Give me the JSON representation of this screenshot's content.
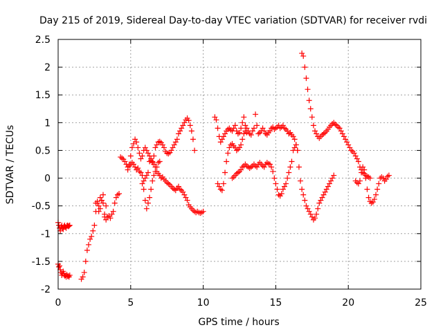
{
  "chart_data": {
    "type": "scatter",
    "title": "Day 215 of 2019, Sidereal Day-to-day VTEC variation (SDTVAR) for receiver rvdi",
    "xlabel": "GPS time / hours",
    "ylabel": "SDTVAR / TECUs",
    "xlim": [
      0,
      25
    ],
    "ylim": [
      -2,
      2.5
    ],
    "xticks": [
      "0",
      "5",
      "10",
      "15",
      "20",
      "25"
    ],
    "yticks": [
      "-2",
      "-1.5",
      "-1",
      "-0.5",
      "0",
      "0.5",
      "1",
      "1.5",
      "2",
      "2.5"
    ],
    "grid": true,
    "marker": "plus",
    "color": "#ff0000",
    "series": [
      {
        "x": [
          0.0,
          0.05,
          0.1,
          0.15,
          0.2,
          0.25,
          0.3,
          0.35,
          0.4,
          0.45,
          0.5,
          0.55,
          0.6,
          0.65,
          0.7,
          0.75,
          0.8
        ],
        "y": [
          -0.8,
          -0.85,
          -0.9,
          -0.95,
          -0.88,
          -0.85,
          -0.9,
          -0.92,
          -0.87,
          -0.85,
          -0.88,
          -0.9,
          -0.86,
          -0.85,
          -0.87,
          -0.86,
          -0.85
        ]
      },
      {
        "x": [
          0.0,
          0.05,
          0.1,
          0.15,
          0.2,
          0.25,
          0.3,
          0.35,
          0.4,
          0.45,
          0.5,
          0.55,
          0.6,
          0.65,
          0.7,
          0.75,
          0.8
        ],
        "y": [
          -1.55,
          -1.6,
          -1.58,
          -1.65,
          -1.7,
          -1.75,
          -1.72,
          -1.68,
          -1.72,
          -1.76,
          -1.75,
          -1.78,
          -1.74,
          -1.77,
          -1.76,
          -1.78,
          -1.75
        ]
      },
      {
        "x": [
          1.6,
          1.7,
          1.8,
          1.9,
          2.0,
          2.1,
          2.2,
          2.3,
          2.4,
          2.5,
          2.6,
          2.7,
          2.8,
          2.9,
          3.0,
          3.1,
          3.2,
          3.3,
          3.4,
          3.5,
          3.6,
          3.7,
          3.8,
          3.9,
          4.0,
          4.1,
          4.2
        ],
        "y": [
          -1.82,
          -1.78,
          -1.7,
          -1.5,
          -1.3,
          -1.2,
          -1.1,
          -1.05,
          -0.95,
          -0.85,
          -0.6,
          -0.45,
          -0.5,
          -0.55,
          -0.4,
          -0.3,
          -0.65,
          -0.5,
          -0.7,
          -0.68,
          -0.72,
          -0.65,
          -0.6,
          -0.45,
          -0.35,
          -0.3,
          -0.28
        ]
      },
      {
        "x": [
          2.6,
          2.7,
          2.8,
          2.9,
          3.0,
          3.1,
          3.2,
          3.3
        ],
        "y": [
          -0.45,
          -0.42,
          -0.6,
          -0.35,
          -0.4,
          -0.45,
          -0.7,
          -0.75
        ]
      },
      {
        "x": [
          4.3,
          4.4,
          4.5,
          4.6,
          4.7,
          4.8,
          4.9,
          5.0,
          5.1,
          5.2,
          5.3,
          5.4,
          5.5,
          5.6,
          5.7,
          5.8,
          5.9,
          6.0,
          6.1,
          6.2,
          6.3,
          6.4,
          6.5,
          6.6,
          6.7,
          6.8,
          6.9,
          7.0,
          7.1,
          7.2,
          7.3,
          7.4,
          7.5,
          7.6,
          7.7,
          7.8,
          7.9,
          8.0,
          8.1,
          8.2,
          8.3,
          8.4,
          8.5,
          8.6,
          8.7,
          8.8,
          8.9,
          9.0,
          9.1,
          9.2,
          9.3,
          9.4,
          9.5,
          9.6,
          9.7,
          9.8,
          9.9,
          10.0
        ],
        "y": [
          0.38,
          0.36,
          0.34,
          0.3,
          0.25,
          0.2,
          0.22,
          0.25,
          0.28,
          0.25,
          0.2,
          0.15,
          0.18,
          0.12,
          0.1,
          0.05,
          -0.05,
          0.0,
          0.05,
          0.1,
          0.3,
          0.32,
          0.28,
          0.25,
          0.2,
          0.12,
          0.08,
          0.05,
          0.0,
          0.02,
          -0.02,
          -0.05,
          -0.08,
          -0.1,
          -0.12,
          -0.15,
          -0.18,
          -0.2,
          -0.22,
          -0.18,
          -0.15,
          -0.2,
          -0.22,
          -0.25,
          -0.3,
          -0.35,
          -0.4,
          -0.48,
          -0.52,
          -0.55,
          -0.58,
          -0.6,
          -0.62,
          -0.6,
          -0.62,
          -0.63,
          -0.62,
          -0.6
        ]
      },
      {
        "x": [
          4.8,
          4.9,
          5.0,
          5.1,
          5.2,
          5.3,
          5.4,
          5.5,
          5.6,
          5.7,
          5.8,
          5.9,
          6.0,
          6.1,
          6.2,
          6.3,
          6.4,
          6.5,
          6.6,
          6.7,
          6.8,
          6.9,
          7.0,
          7.1,
          7.2,
          7.3,
          7.4,
          7.5,
          7.6,
          7.7,
          7.8,
          7.9,
          8.0,
          8.1,
          8.2,
          8.3,
          8.4,
          8.5,
          8.6,
          8.7,
          8.8,
          8.9,
          9.0,
          9.1,
          9.2,
          9.3,
          9.4
        ],
        "y": [
          0.15,
          0.25,
          0.4,
          0.55,
          0.62,
          0.7,
          0.65,
          0.55,
          0.45,
          0.35,
          0.4,
          0.5,
          0.55,
          0.5,
          0.45,
          0.4,
          0.35,
          0.3,
          0.4,
          0.55,
          0.6,
          0.65,
          0.66,
          0.64,
          0.6,
          0.55,
          0.48,
          0.45,
          0.44,
          0.46,
          0.5,
          0.55,
          0.6,
          0.65,
          0.7,
          0.8,
          0.85,
          0.9,
          0.95,
          1.0,
          1.05,
          1.08,
          1.04,
          0.95,
          0.85,
          0.7,
          0.5
        ]
      },
      {
        "x": [
          5.8,
          5.9,
          6.0,
          6.1,
          6.2,
          6.3,
          6.4,
          6.5,
          6.6,
          6.7,
          6.8,
          6.9,
          7.0
        ],
        "y": [
          -0.1,
          -0.2,
          -0.4,
          -0.55,
          -0.45,
          -0.35,
          -0.2,
          -0.05,
          0.05,
          0.12,
          0.2,
          0.28,
          0.3
        ]
      },
      {
        "x": [
          10.8,
          10.9,
          11.0,
          11.1,
          11.2,
          11.3,
          11.4,
          11.5,
          11.6,
          11.7,
          11.8,
          11.9,
          12.0,
          12.1,
          12.2,
          12.3,
          12.4,
          12.5,
          12.6,
          12.7,
          12.8,
          12.9,
          13.0,
          13.1,
          13.2,
          13.3,
          13.4,
          13.5,
          13.6,
          13.7,
          13.8,
          13.9,
          14.0,
          14.1,
          14.2,
          14.3,
          14.4,
          14.5,
          14.6,
          14.7,
          14.8,
          14.9,
          15.0,
          15.1,
          15.2,
          15.3,
          15.4,
          15.5,
          15.6,
          15.7,
          15.8,
          15.9,
          16.0,
          16.1,
          16.2,
          16.3,
          16.4,
          16.5
        ],
        "y": [
          1.1,
          1.05,
          0.9,
          0.75,
          0.65,
          0.7,
          0.75,
          0.8,
          0.85,
          0.88,
          0.9,
          0.87,
          0.85,
          0.9,
          0.95,
          0.85,
          0.8,
          0.82,
          0.9,
          1.0,
          1.1,
          0.95,
          0.9,
          0.85,
          0.8,
          0.78,
          0.85,
          0.9,
          1.15,
          0.95,
          0.8,
          0.82,
          0.85,
          0.9,
          0.85,
          0.8,
          0.78,
          0.82,
          0.85,
          0.9,
          0.92,
          0.88,
          0.9,
          0.92,
          0.95,
          0.9,
          0.92,
          0.95,
          0.9,
          0.88,
          0.85,
          0.8,
          0.82,
          0.78,
          0.75,
          0.7,
          0.6,
          0.5
        ]
      },
      {
        "x": [
          11.0,
          11.1,
          11.2,
          11.3,
          11.4,
          11.5,
          11.6,
          11.7,
          11.8,
          11.9,
          12.0,
          12.1,
          12.2,
          12.3,
          12.4,
          12.5,
          12.6,
          12.7,
          12.8,
          12.9,
          13.0
        ],
        "y": [
          -0.1,
          -0.15,
          -0.2,
          -0.22,
          -0.1,
          0.1,
          0.3,
          0.45,
          0.55,
          0.6,
          0.62,
          0.58,
          0.55,
          0.5,
          0.52,
          0.55,
          0.6,
          0.7,
          0.8,
          0.85,
          0.82
        ]
      },
      {
        "x": [
          12.0,
          12.1,
          12.2,
          12.3,
          12.4,
          12.5,
          12.6,
          12.7,
          12.8,
          12.9,
          13.0,
          13.1,
          13.2,
          13.3,
          13.4,
          13.5,
          13.6,
          13.7,
          13.8,
          13.9,
          14.0,
          14.1,
          14.2,
          14.3,
          14.4,
          14.5,
          14.6,
          14.7,
          14.8,
          14.9,
          15.0,
          15.1,
          15.2,
          15.3,
          15.4,
          15.5,
          15.6,
          15.7,
          15.8,
          15.9,
          16.0,
          16.1,
          16.2,
          16.3,
          16.4,
          16.5,
          16.6,
          16.7,
          16.8,
          16.9,
          17.0,
          17.1,
          17.2,
          17.3,
          17.4,
          17.5,
          17.6,
          17.7,
          17.8,
          17.9,
          18.0,
          18.1,
          18.2,
          18.3,
          18.4,
          18.5,
          18.6,
          18.7,
          18.8,
          18.9,
          19.0
        ],
        "y": [
          0.0,
          0.02,
          0.05,
          0.08,
          0.1,
          0.12,
          0.15,
          0.2,
          0.22,
          0.25,
          0.22,
          0.2,
          0.18,
          0.2,
          0.22,
          0.25,
          0.22,
          0.2,
          0.25,
          0.28,
          0.25,
          0.22,
          0.2,
          0.25,
          0.28,
          0.26,
          0.25,
          0.2,
          0.12,
          0.0,
          -0.1,
          -0.2,
          -0.3,
          -0.32,
          -0.28,
          -0.2,
          -0.15,
          -0.1,
          0.0,
          0.1,
          0.2,
          0.3,
          0.5,
          0.55,
          0.6,
          0.5,
          0.2,
          -0.05,
          -0.2,
          -0.3,
          -0.4,
          -0.5,
          -0.55,
          -0.6,
          -0.65,
          -0.7,
          -0.75,
          -0.72,
          -0.65,
          -0.55,
          -0.45,
          -0.4,
          -0.35,
          -0.3,
          -0.25,
          -0.2,
          -0.15,
          -0.1,
          -0.05,
          0.0,
          0.05
        ]
      },
      {
        "x": [
          16.8,
          16.9,
          17.0,
          17.1,
          17.2,
          17.3,
          17.4,
          17.5,
          17.6,
          17.7,
          17.8,
          17.9,
          18.0,
          18.1,
          18.2,
          18.3,
          18.4,
          18.5,
          18.6,
          18.7,
          18.8,
          18.9,
          19.0,
          19.1,
          19.2,
          19.3,
          19.4,
          19.5,
          19.6,
          19.7,
          19.8,
          19.9,
          20.0,
          20.1,
          20.2,
          20.3,
          20.4,
          20.5,
          20.6,
          20.7,
          20.8,
          20.9,
          21.0,
          21.1,
          21.2,
          21.3,
          21.4,
          21.5
        ],
        "y": [
          2.25,
          2.2,
          2.0,
          1.8,
          1.6,
          1.4,
          1.25,
          1.1,
          0.95,
          0.85,
          0.8,
          0.75,
          0.72,
          0.75,
          0.78,
          0.8,
          0.82,
          0.85,
          0.88,
          0.92,
          0.95,
          0.98,
          1.0,
          0.97,
          0.95,
          0.92,
          0.9,
          0.85,
          0.8,
          0.75,
          0.7,
          0.65,
          0.6,
          0.55,
          0.5,
          0.48,
          0.45,
          0.4,
          0.35,
          0.3,
          0.2,
          0.15,
          0.1,
          0.08,
          0.05,
          0.03,
          0.02,
          0.0
        ]
      },
      {
        "x": [
          20.5,
          20.6,
          20.7,
          20.8,
          20.9,
          21.0,
          21.1,
          21.2,
          21.3,
          21.4,
          21.5,
          21.6,
          21.7,
          21.8,
          21.9,
          22.0,
          22.1,
          22.2,
          22.3,
          22.4,
          22.5,
          22.6,
          22.7,
          22.8
        ],
        "y": [
          -0.05,
          -0.08,
          -0.1,
          -0.05,
          0.1,
          0.2,
          0.15,
          0.0,
          -0.2,
          -0.35,
          -0.42,
          -0.45,
          -0.43,
          -0.38,
          -0.3,
          -0.2,
          -0.1,
          0.0,
          0.02,
          0.0,
          -0.05,
          -0.02,
          0.03,
          0.05
        ]
      }
    ]
  }
}
